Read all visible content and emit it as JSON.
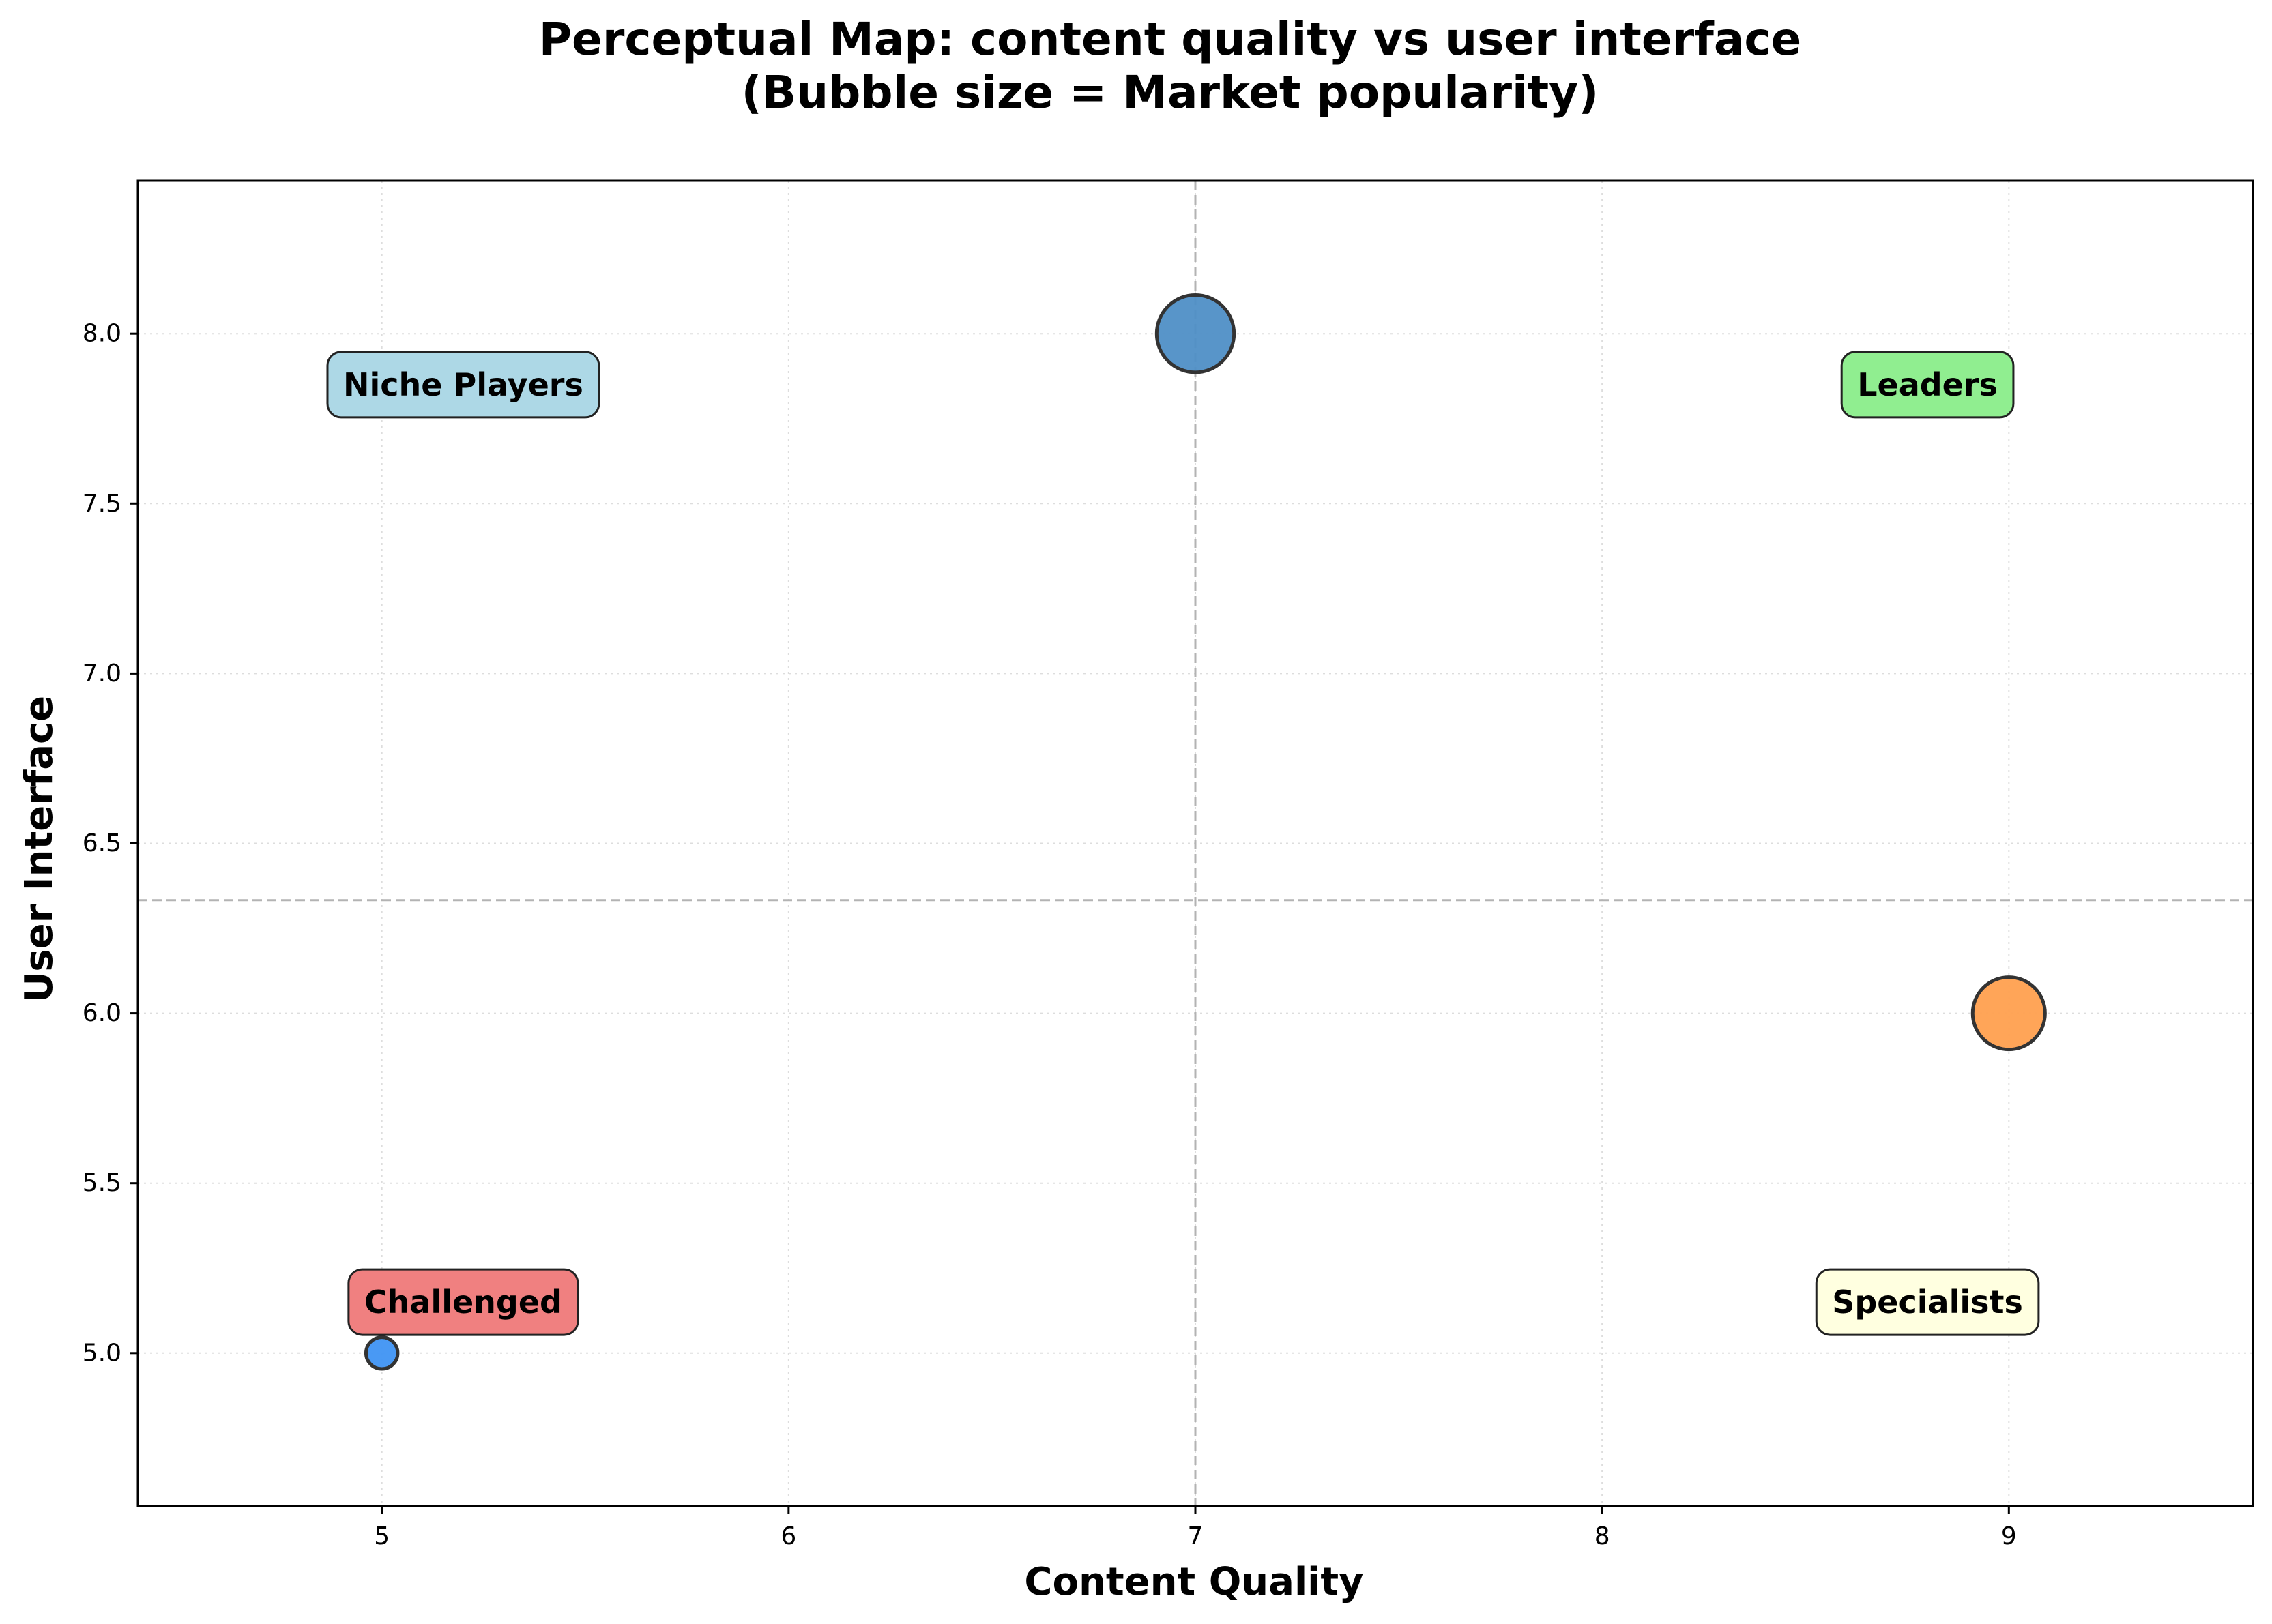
{
  "chart_data": {
    "type": "scatter",
    "title_line1": "Perceptual Map: content quality vs user interface",
    "title_line2": "(Bubble size = Market popularity)",
    "xlabel": "Content Quality",
    "ylabel": "User Interface",
    "xlim": [
      4.4,
      9.6
    ],
    "ylim": [
      4.55,
      8.45
    ],
    "xticks": [
      5,
      6,
      7,
      8,
      9
    ],
    "xtick_labels": [
      "5",
      "6",
      "7",
      "8",
      "9"
    ],
    "yticks": [
      5.0,
      5.5,
      6.0,
      6.5,
      7.0,
      7.5,
      8.0
    ],
    "ytick_labels": [
      "5.0",
      "5.5",
      "6.0",
      "6.5",
      "7.0",
      "7.5",
      "8.0"
    ],
    "grid": true,
    "reference_lines": {
      "x": 7.0,
      "y": 6.333
    },
    "points": [
      {
        "x": 7,
        "y": 8,
        "size": 3,
        "color": "#4f8fc6"
      },
      {
        "x": 9,
        "y": 6,
        "size": 2.6,
        "color": "#ffa04f"
      },
      {
        "x": 5,
        "y": 5,
        "size": 0.4,
        "color": "#3f93f3"
      }
    ],
    "quadrant_labels": [
      {
        "text": "Niche Players",
        "x": 5.2,
        "y": 7.85,
        "fill": "#add8e6"
      },
      {
        "text": "Leaders",
        "x": 8.8,
        "y": 7.85,
        "fill": "#90ee90"
      },
      {
        "text": "Challenged",
        "x": 5.2,
        "y": 5.15,
        "fill": "#f08080"
      },
      {
        "text": "Specialists",
        "x": 8.8,
        "y": 5.15,
        "fill": "#ffffe0"
      }
    ]
  }
}
